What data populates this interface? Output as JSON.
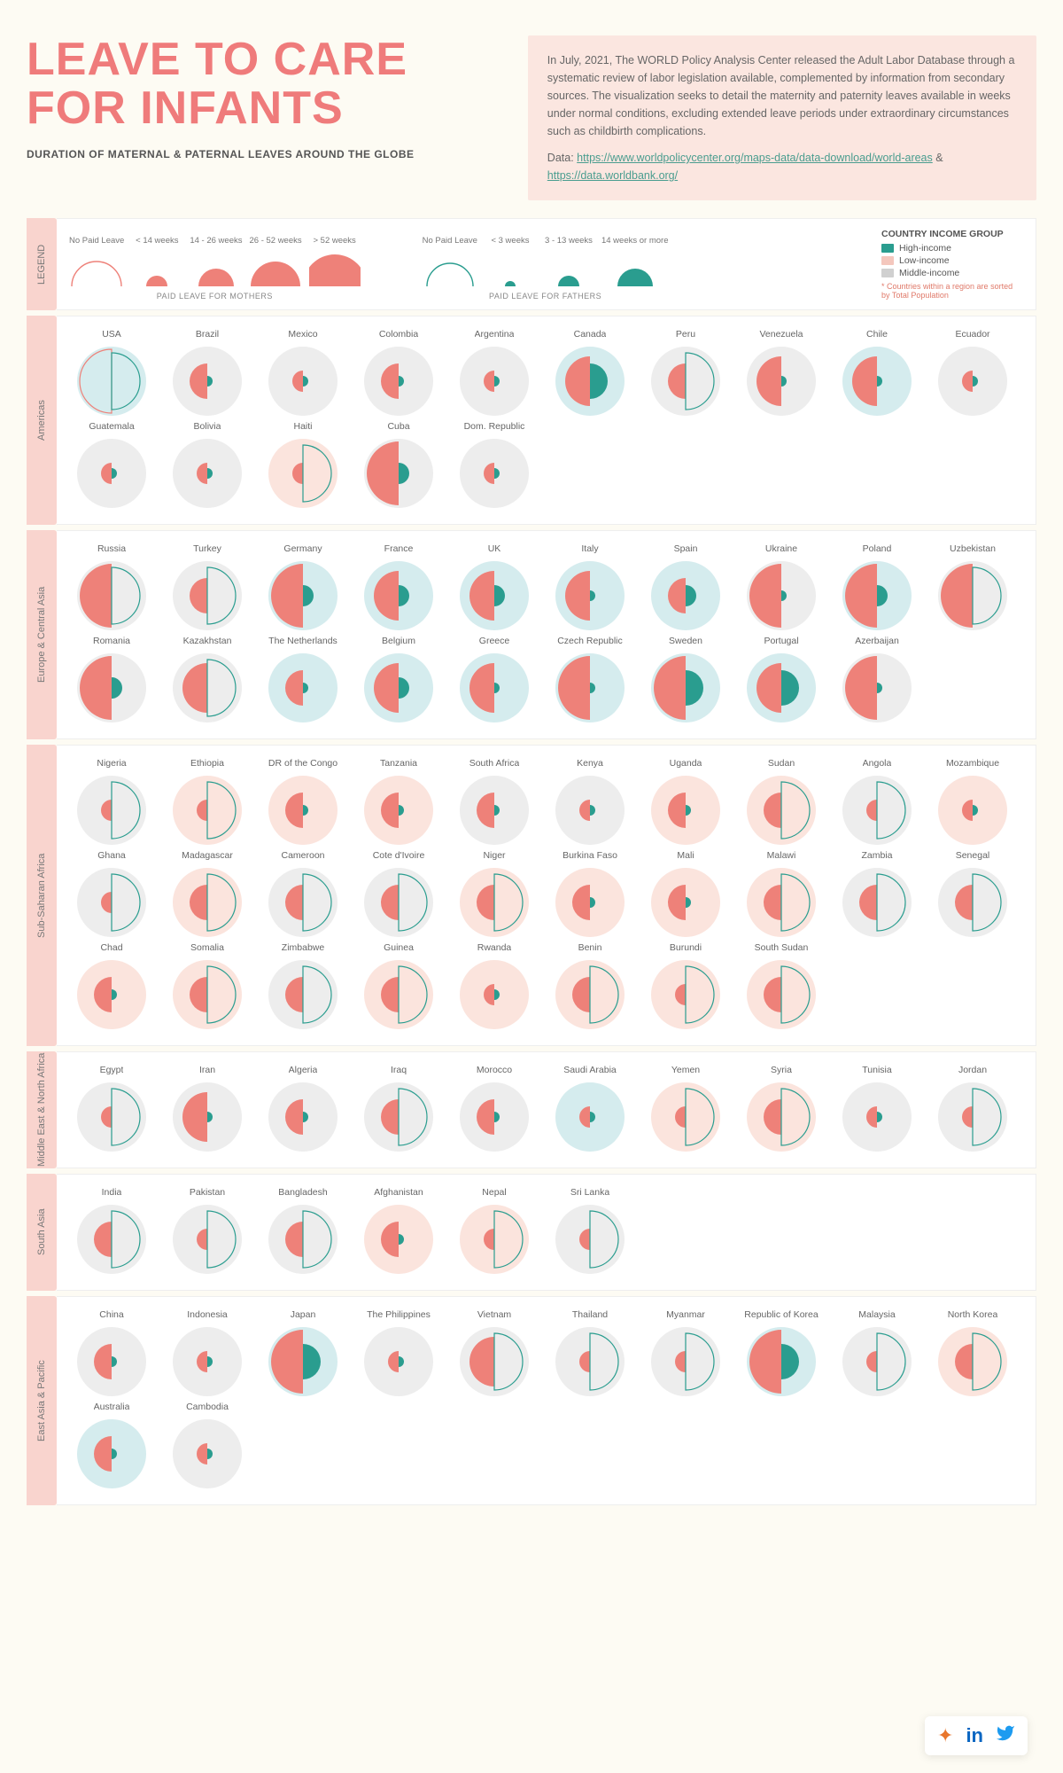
{
  "colors": {
    "bg": "#fdfbf3",
    "title": "#ef7b7b",
    "tab": "#f9d4ce",
    "mother_fill": "#ee8179",
    "father_fill": "#2a9d8f",
    "high_income_bg": "#d5ecee",
    "low_income_bg": "#fbe4dd",
    "middle_income_bg": "#ededed",
    "link": "#4a9d8f",
    "asterisk": "#e07a6a"
  },
  "title": "LEAVE TO CARE FOR INFANTS",
  "subtitle": "DURATION OF MATERNAL & PATERNAL LEAVES AROUND THE GLOBE",
  "description": "In July, 2021, The WORLD Policy Analysis Center released the Adult Labor Database through a systematic review of labor legislation available, complemented by information from secondary sources. The visualization seeks to detail the maternity and paternity leaves available in weeks under normal conditions, excluding extended leave periods under extraordinary circumstances such as childbirth complications.",
  "data_label": "Data:",
  "data_link1_text": "https://www.worldpolicycenter.org/maps-data/data-download/world-areas",
  "data_link2_text": "https://data.worldbank.org/",
  "legend": {
    "tab": "LEGEND",
    "mothers_caption": "PAID LEAVE FOR MOTHERS",
    "fathers_caption": "PAID LEAVE FOR FATHERS",
    "mother_buckets": [
      "No Paid Leave",
      "< 14 weeks",
      "14 - 26 weeks",
      "26 - 52 weeks",
      "> 52 weeks"
    ],
    "father_buckets": [
      "No Paid Leave",
      "< 3 weeks",
      "3 - 13 weeks",
      "14 weeks or more"
    ],
    "income_header": "COUNTRY INCOME GROUP",
    "income_items": [
      {
        "label": "High-income",
        "color": "#2a9d8f"
      },
      {
        "label": "Low-income",
        "color": "#f4c7bd"
      },
      {
        "label": "Middle-income",
        "color": "#d0d0d0"
      }
    ],
    "sort_note": "* Countries within a region are sorted by Total Population"
  },
  "glyph": {
    "outer_radius": 39,
    "mother_radii": {
      "0": 0,
      "1": 12,
      "2": 20,
      "3": 28,
      "4": 36
    },
    "father_radii": {
      "0": 0,
      "1": 6,
      "2": 12,
      "3": 20
    },
    "mother_outline_only_radius": 36,
    "father_outline_only_radius": 32
  },
  "regions": [
    {
      "name": "Americas",
      "countries": [
        {
          "n": "USA",
          "inc": "high",
          "m": 0,
          "f": 0
        },
        {
          "n": "Brazil",
          "inc": "middle",
          "m": 2,
          "f": 1
        },
        {
          "n": "Mexico",
          "inc": "middle",
          "m": 1,
          "f": 1
        },
        {
          "n": "Colombia",
          "inc": "middle",
          "m": 2,
          "f": 1
        },
        {
          "n": "Argentina",
          "inc": "middle",
          "m": 1,
          "f": 1
        },
        {
          "n": "Canada",
          "inc": "high",
          "m": 3,
          "f": 3
        },
        {
          "n": "Peru",
          "inc": "middle",
          "m": 2,
          "f": 0
        },
        {
          "n": "Venezuela",
          "inc": "middle",
          "m": 3,
          "f": 1
        },
        {
          "n": "Chile",
          "inc": "high",
          "m": 3,
          "f": 1
        },
        {
          "n": "Ecuador",
          "inc": "middle",
          "m": 1,
          "f": 1
        },
        {
          "n": "Guatemala",
          "inc": "middle",
          "m": 1,
          "f": 1
        },
        {
          "n": "Bolivia",
          "inc": "middle",
          "m": 1,
          "f": 1
        },
        {
          "n": "Haiti",
          "inc": "low",
          "m": 1,
          "f": 0
        },
        {
          "n": "Cuba",
          "inc": "middle",
          "m": 4,
          "f": 2
        },
        {
          "n": "Dom. Republic",
          "inc": "middle",
          "m": 1,
          "f": 1
        }
      ]
    },
    {
      "name": "Europe & Central Asia",
      "countries": [
        {
          "n": "Russia",
          "inc": "middle",
          "m": 4,
          "f": 0
        },
        {
          "n": "Turkey",
          "inc": "middle",
          "m": 2,
          "f": 0
        },
        {
          "n": "Germany",
          "inc": "high",
          "m": 4,
          "f": 2
        },
        {
          "n": "France",
          "inc": "high",
          "m": 3,
          "f": 2
        },
        {
          "n": "UK",
          "inc": "high",
          "m": 3,
          "f": 2
        },
        {
          "n": "Italy",
          "inc": "high",
          "m": 3,
          "f": 1
        },
        {
          "n": "Spain",
          "inc": "high",
          "m": 2,
          "f": 2
        },
        {
          "n": "Ukraine",
          "inc": "middle",
          "m": 4,
          "f": 1
        },
        {
          "n": "Poland",
          "inc": "high",
          "m": 4,
          "f": 2
        },
        {
          "n": "Uzbekistan",
          "inc": "middle",
          "m": 4,
          "f": 0
        },
        {
          "n": "Romania",
          "inc": "middle",
          "m": 4,
          "f": 2
        },
        {
          "n": "Kazakhstan",
          "inc": "middle",
          "m": 3,
          "f": 0
        },
        {
          "n": "The Netherlands",
          "inc": "high",
          "m": 2,
          "f": 1
        },
        {
          "n": "Belgium",
          "inc": "high",
          "m": 3,
          "f": 2
        },
        {
          "n": "Greece",
          "inc": "high",
          "m": 3,
          "f": 1
        },
        {
          "n": "Czech Republic",
          "inc": "high",
          "m": 4,
          "f": 1
        },
        {
          "n": "Sweden",
          "inc": "high",
          "m": 4,
          "f": 3
        },
        {
          "n": "Portugal",
          "inc": "high",
          "m": 3,
          "f": 3
        },
        {
          "n": "Azerbaijan",
          "inc": "middle",
          "m": 4,
          "f": 1
        }
      ]
    },
    {
      "name": "Sub-Saharan Africa",
      "countries": [
        {
          "n": "Nigeria",
          "inc": "middle",
          "m": 1,
          "f": 0
        },
        {
          "n": "Ethiopia",
          "inc": "low",
          "m": 1,
          "f": 0
        },
        {
          "n": "DR of the Congo",
          "inc": "low",
          "m": 2,
          "f": 1
        },
        {
          "n": "Tanzania",
          "inc": "low",
          "m": 2,
          "f": 1
        },
        {
          "n": "South Africa",
          "inc": "middle",
          "m": 2,
          "f": 1
        },
        {
          "n": "Kenya",
          "inc": "middle",
          "m": 1,
          "f": 1
        },
        {
          "n": "Uganda",
          "inc": "low",
          "m": 2,
          "f": 1
        },
        {
          "n": "Sudan",
          "inc": "low",
          "m": 2,
          "f": 0
        },
        {
          "n": "Angola",
          "inc": "middle",
          "m": 1,
          "f": 0
        },
        {
          "n": "Mozambique",
          "inc": "low",
          "m": 1,
          "f": 1
        },
        {
          "n": "Ghana",
          "inc": "middle",
          "m": 1,
          "f": 0
        },
        {
          "n": "Madagascar",
          "inc": "low",
          "m": 2,
          "f": 0
        },
        {
          "n": "Cameroon",
          "inc": "middle",
          "m": 2,
          "f": 0
        },
        {
          "n": "Cote d'Ivoire",
          "inc": "middle",
          "m": 2,
          "f": 0
        },
        {
          "n": "Niger",
          "inc": "low",
          "m": 2,
          "f": 0
        },
        {
          "n": "Burkina Faso",
          "inc": "low",
          "m": 2,
          "f": 1
        },
        {
          "n": "Mali",
          "inc": "low",
          "m": 2,
          "f": 1
        },
        {
          "n": "Malawi",
          "inc": "low",
          "m": 2,
          "f": 0
        },
        {
          "n": "Zambia",
          "inc": "middle",
          "m": 2,
          "f": 0
        },
        {
          "n": "Senegal",
          "inc": "middle",
          "m": 2,
          "f": 0
        },
        {
          "n": "Chad",
          "inc": "low",
          "m": 2,
          "f": 1
        },
        {
          "n": "Somalia",
          "inc": "low",
          "m": 2,
          "f": 0
        },
        {
          "n": "Zimbabwe",
          "inc": "middle",
          "m": 2,
          "f": 0
        },
        {
          "n": "Guinea",
          "inc": "low",
          "m": 2,
          "f": 0
        },
        {
          "n": "Rwanda",
          "inc": "low",
          "m": 1,
          "f": 1
        },
        {
          "n": "Benin",
          "inc": "low",
          "m": 2,
          "f": 0
        },
        {
          "n": "Burundi",
          "inc": "low",
          "m": 1,
          "f": 0
        },
        {
          "n": "South Sudan",
          "inc": "low",
          "m": 2,
          "f": 0
        }
      ]
    },
    {
      "name": "Middle East & North Africa",
      "countries": [
        {
          "n": "Egypt",
          "inc": "middle",
          "m": 1,
          "f": 0
        },
        {
          "n": "Iran",
          "inc": "middle",
          "m": 3,
          "f": 1
        },
        {
          "n": "Algeria",
          "inc": "middle",
          "m": 2,
          "f": 1
        },
        {
          "n": "Iraq",
          "inc": "middle",
          "m": 2,
          "f": 0
        },
        {
          "n": "Morocco",
          "inc": "middle",
          "m": 2,
          "f": 1
        },
        {
          "n": "Saudi Arabia",
          "inc": "high",
          "m": 1,
          "f": 1
        },
        {
          "n": "Yemen",
          "inc": "low",
          "m": 1,
          "f": 0
        },
        {
          "n": "Syria",
          "inc": "low",
          "m": 2,
          "f": 0
        },
        {
          "n": "Tunisia",
          "inc": "middle",
          "m": 1,
          "f": 1
        },
        {
          "n": "Jordan",
          "inc": "middle",
          "m": 1,
          "f": 0
        }
      ]
    },
    {
      "name": "South Asia",
      "countries": [
        {
          "n": "India",
          "inc": "middle",
          "m": 2,
          "f": 0
        },
        {
          "n": "Pakistan",
          "inc": "middle",
          "m": 1,
          "f": 0
        },
        {
          "n": "Bangladesh",
          "inc": "middle",
          "m": 2,
          "f": 0
        },
        {
          "n": "Afghanistan",
          "inc": "low",
          "m": 2,
          "f": 1
        },
        {
          "n": "Nepal",
          "inc": "low",
          "m": 1,
          "f": 0
        },
        {
          "n": "Sri Lanka",
          "inc": "middle",
          "m": 1,
          "f": 0
        }
      ]
    },
    {
      "name": "East Asia & Pacific",
      "countries": [
        {
          "n": "China",
          "inc": "middle",
          "m": 2,
          "f": 1
        },
        {
          "n": "Indonesia",
          "inc": "middle",
          "m": 1,
          "f": 1
        },
        {
          "n": "Japan",
          "inc": "high",
          "m": 4,
          "f": 3
        },
        {
          "n": "The Philippines",
          "inc": "middle",
          "m": 1,
          "f": 1
        },
        {
          "n": "Vietnam",
          "inc": "middle",
          "m": 3,
          "f": 0
        },
        {
          "n": "Thailand",
          "inc": "middle",
          "m": 1,
          "f": 0
        },
        {
          "n": "Myanmar",
          "inc": "middle",
          "m": 1,
          "f": 0
        },
        {
          "n": "Republic of Korea",
          "inc": "high",
          "m": 4,
          "f": 3
        },
        {
          "n": "Malaysia",
          "inc": "middle",
          "m": 1,
          "f": 0
        },
        {
          "n": "North Korea",
          "inc": "low",
          "m": 2,
          "f": 0
        },
        {
          "n": "Australia",
          "inc": "high",
          "m": 2,
          "f": 1
        },
        {
          "n": "Cambodia",
          "inc": "middle",
          "m": 1,
          "f": 1
        }
      ]
    }
  ],
  "social": {
    "tableau": "⁜",
    "linkedin": "in",
    "twitter": "🐦"
  }
}
